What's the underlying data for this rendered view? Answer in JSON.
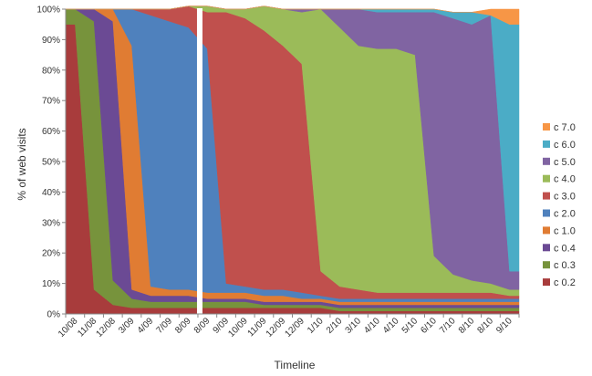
{
  "chart_data": {
    "type": "area",
    "stacked": "percent",
    "ylabel": "% of web visits",
    "xlabel": "Timeline",
    "ylim": [
      0,
      100
    ],
    "y_ticks": [
      "0%",
      "10%",
      "20%",
      "30%",
      "40%",
      "50%",
      "60%",
      "70%",
      "80%",
      "90%",
      "100%"
    ],
    "x_ticks": [
      "10/08",
      "11/08",
      "12/08",
      "3/09",
      "4/09",
      "7/09",
      "8/09",
      "8/09",
      "9/09",
      "10/09",
      "11/09",
      "12/09",
      "12/09",
      "1/10",
      "2/10",
      "3/10",
      "4/10",
      "4/10",
      "5/10",
      "6/10",
      "7/10",
      "8/10",
      "8/10",
      "9/10"
    ],
    "gap_after_x_index": 6,
    "grid": false,
    "legend_position": "right",
    "legend": [
      {
        "name": "c 7.0",
        "color": "#f79646"
      },
      {
        "name": "c 6.0",
        "color": "#4bacc6"
      },
      {
        "name": "c 5.0",
        "color": "#8064a2"
      },
      {
        "name": "c 4.0",
        "color": "#9bbb59"
      },
      {
        "name": "c 3.0",
        "color": "#c0504d"
      },
      {
        "name": "c 2.0",
        "color": "#4f81bd"
      },
      {
        "name": "c 1.0",
        "color": "#e07c33"
      },
      {
        "name": "c 0.4",
        "color": "#6b4a94"
      },
      {
        "name": "c  0.3",
        "color": "#77933c"
      },
      {
        "name": "c 0.2",
        "color": "#a83c3c"
      }
    ],
    "series_stack_order_bottom_to_top": [
      "c 0.2",
      "c  0.3",
      "c 0.4",
      "c 1.0",
      "c 2.0",
      "c 3.0",
      "c 4.0",
      "c 5.0",
      "c 6.0",
      "c 7.0"
    ],
    "series": [
      {
        "name": "c 0.2",
        "values": [
          95,
          8,
          3,
          2,
          2,
          2,
          2,
          2,
          2,
          2,
          2,
          2,
          2,
          2,
          1,
          1,
          1,
          1,
          1,
          1,
          1,
          1,
          1,
          1
        ]
      },
      {
        "name": "c  0.3",
        "values": [
          5,
          88,
          8,
          3,
          2,
          2,
          2,
          2,
          2,
          2,
          1,
          1,
          1,
          1,
          1,
          1,
          1,
          1,
          1,
          1,
          1,
          1,
          1,
          1
        ]
      },
      {
        "name": "c 0.4",
        "values": [
          0,
          4,
          85,
          3,
          2,
          2,
          2,
          1,
          1,
          1,
          1,
          1,
          1,
          1,
          1,
          1,
          1,
          1,
          1,
          1,
          1,
          1,
          1,
          1
        ]
      },
      {
        "name": "c 1.0",
        "values": [
          0,
          0,
          4,
          80,
          3,
          2,
          2,
          2,
          2,
          2,
          2,
          2,
          1,
          1,
          1,
          1,
          1,
          1,
          1,
          1,
          1,
          1,
          1,
          1
        ]
      },
      {
        "name": "c 2.0",
        "values": [
          0,
          0,
          0,
          12,
          89,
          88,
          86,
          80,
          3,
          2,
          2,
          2,
          2,
          1,
          1,
          1,
          1,
          1,
          1,
          1,
          1,
          1,
          1,
          1
        ]
      },
      {
        "name": "c 3.0",
        "values": [
          0,
          0,
          0,
          0,
          2,
          4,
          7,
          12,
          89,
          88,
          85,
          80,
          75,
          8,
          4,
          3,
          2,
          2,
          2,
          2,
          2,
          2,
          2,
          1
        ]
      },
      {
        "name": "c 4.0",
        "values": [
          0,
          0,
          0,
          0,
          0,
          0,
          0,
          2,
          1,
          3,
          8,
          12,
          17,
          86,
          85,
          80,
          80,
          80,
          78,
          12,
          6,
          4,
          3,
          2
        ]
      },
      {
        "name": "c 5.0",
        "values": [
          0,
          0,
          0,
          0,
          0,
          0,
          0,
          0,
          0,
          0,
          0,
          0,
          1,
          0,
          6,
          12,
          12,
          12,
          14,
          80,
          84,
          84,
          88,
          6
        ]
      },
      {
        "name": "c 6.0",
        "values": [
          0,
          0,
          0,
          0,
          0,
          0,
          0,
          0,
          0,
          0,
          0,
          0,
          0,
          0,
          0,
          0,
          1,
          1,
          1,
          1,
          2,
          4,
          0,
          81
        ]
      },
      {
        "name": "c 7.0",
        "values": [
          0,
          0,
          0,
          0,
          0,
          0,
          0,
          0,
          0,
          0,
          0,
          0,
          0,
          0,
          0,
          0,
          0,
          0,
          0,
          0,
          0,
          0,
          2,
          5
        ]
      }
    ]
  }
}
